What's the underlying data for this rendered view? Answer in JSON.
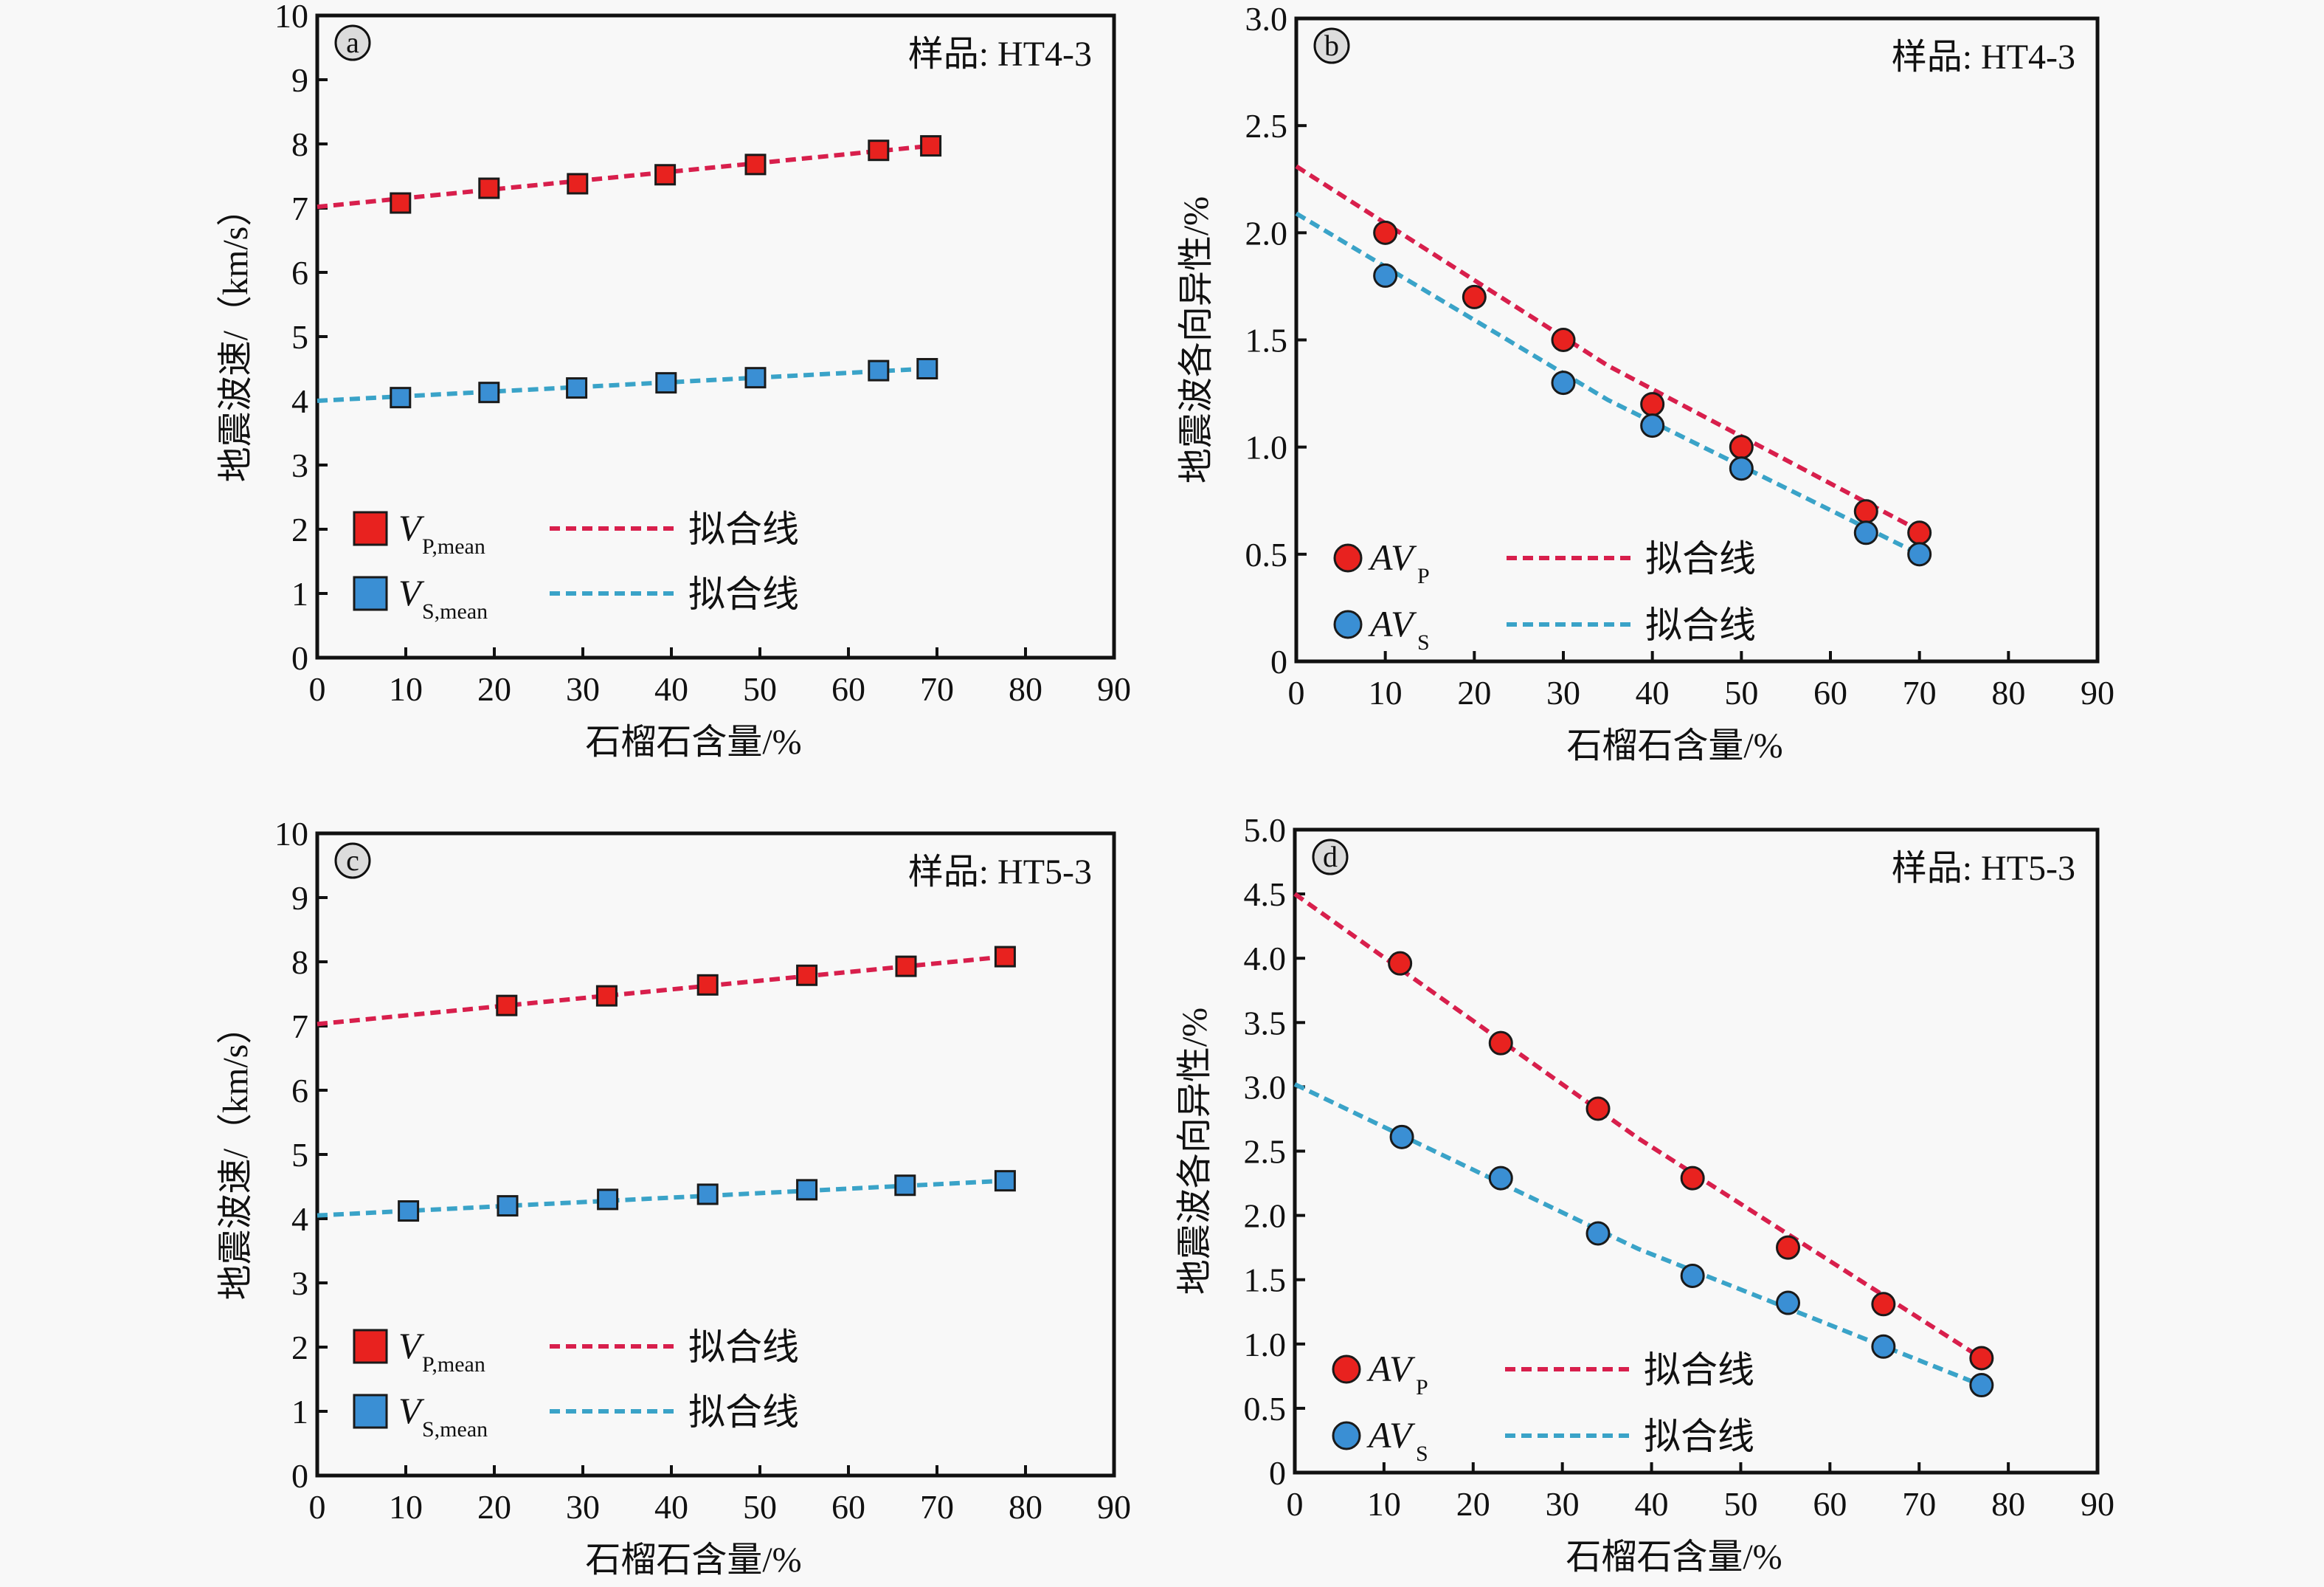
{
  "figure": {
    "background": "#f8f8f8",
    "colors": {
      "p_marker": "#e8221f",
      "p_line": "#d81f4c",
      "s_marker": "#3a8fd4",
      "s_line": "#3aa3c8",
      "axis": "#111111"
    }
  },
  "chart_data": [
    {
      "panel": "a",
      "type": "scatter",
      "marker": "square",
      "sample_label": "样品: HT4-3",
      "xlabel": "石榴石含量/%",
      "ylabel": "地震波速/（km/s）",
      "xlim": [
        0,
        90
      ],
      "ylim": [
        0,
        10
      ],
      "xticks": [
        0,
        10,
        20,
        30,
        40,
        50,
        60,
        70,
        80,
        90
      ],
      "yticks": [
        0,
        1,
        2,
        3,
        4,
        5,
        6,
        7,
        8,
        9,
        10
      ],
      "ytick_labels": [
        "0",
        "1",
        "2",
        "3",
        "4",
        "5",
        "6",
        "7",
        "8",
        "9",
        "10"
      ],
      "grid": false,
      "legend_position": "bottom-left",
      "series": [
        {
          "name": "V",
          "subscript": "P,mean",
          "color_key": "p",
          "x": [
            9.4,
            19.4,
            29.4,
            39.3,
            49.5,
            63.4,
            69.3
          ],
          "y": [
            7.08,
            7.31,
            7.38,
            7.52,
            7.68,
            7.9,
            7.97
          ],
          "fit": {
            "label": "拟合线",
            "x": [
              0,
              69.3
            ],
            "y": [
              7.02,
              7.97
            ]
          }
        },
        {
          "name": "V",
          "subscript": "S,mean",
          "color_key": "s",
          "x": [
            9.4,
            19.4,
            29.3,
            39.4,
            49.5,
            63.4,
            68.9
          ],
          "y": [
            4.05,
            4.13,
            4.2,
            4.28,
            4.36,
            4.47,
            4.5
          ],
          "fit": {
            "label": "拟合线",
            "x": [
              0,
              68.9
            ],
            "y": [
              4.0,
              4.5
            ]
          }
        }
      ]
    },
    {
      "panel": "b",
      "type": "scatter",
      "marker": "circle",
      "sample_label": "样品: HT4-3",
      "xlabel": "石榴石含量/%",
      "ylabel": "地震波各向异性/%",
      "xlim": [
        0,
        90
      ],
      "ylim": [
        0,
        3.0
      ],
      "xticks": [
        0,
        10,
        20,
        30,
        40,
        50,
        60,
        70,
        80,
        90
      ],
      "yticks": [
        0,
        0.5,
        1.0,
        1.5,
        2.0,
        2.5,
        3.0
      ],
      "ytick_labels": [
        "0",
        "0.5",
        "1.0",
        "1.5",
        "2.0",
        "2.5",
        "3.0"
      ],
      "grid": false,
      "legend_position": "bottom-left",
      "series": [
        {
          "name": "AV",
          "subscript": "P",
          "color_key": "p",
          "x": [
            10,
            20,
            30,
            40,
            50,
            64,
            70
          ],
          "y": [
            2.0,
            1.7,
            1.5,
            1.2,
            1.0,
            0.7,
            0.6
          ],
          "fit": {
            "label": "拟合线",
            "x": [
              0,
              35,
              70
            ],
            "y": [
              2.31,
              1.38,
              0.61
            ]
          }
        },
        {
          "name": "AV",
          "subscript": "S",
          "color_key": "s",
          "x": [
            10,
            30,
            40,
            50,
            64,
            70
          ],
          "y": [
            1.8,
            1.3,
            1.1,
            0.9,
            0.6,
            0.5
          ],
          "fit": {
            "label": "拟合线",
            "x": [
              0,
              35,
              70
            ],
            "y": [
              2.09,
              1.22,
              0.5
            ]
          }
        }
      ]
    },
    {
      "panel": "c",
      "type": "scatter",
      "marker": "square",
      "sample_label": "样品: HT5-3",
      "xlabel": "石榴石含量/%",
      "ylabel": "地震波速/（km/s）",
      "xlim": [
        0,
        90
      ],
      "ylim": [
        0,
        10
      ],
      "xticks": [
        0,
        10,
        20,
        30,
        40,
        50,
        60,
        70,
        80,
        90
      ],
      "yticks": [
        0,
        1,
        2,
        3,
        4,
        5,
        6,
        7,
        8,
        9,
        10
      ],
      "ytick_labels": [
        "0",
        "1",
        "2",
        "3",
        "4",
        "5",
        "6",
        "7",
        "8",
        "9",
        "10"
      ],
      "grid": false,
      "legend_position": "bottom-left",
      "series": [
        {
          "name": "V",
          "subscript": "P,mean",
          "color_key": "p",
          "x": [
            21.4,
            32.7,
            44.1,
            55.3,
            66.5,
            77.7
          ],
          "y": [
            7.32,
            7.47,
            7.64,
            7.79,
            7.93,
            8.08
          ],
          "fit": {
            "label": "拟合线",
            "x": [
              0,
              77.7
            ],
            "y": [
              7.03,
              8.08
            ]
          }
        },
        {
          "name": "V",
          "subscript": "S,mean",
          "color_key": "s",
          "x": [
            10.3,
            21.5,
            32.8,
            44.1,
            55.3,
            66.4,
            77.7
          ],
          "y": [
            4.12,
            4.2,
            4.3,
            4.38,
            4.45,
            4.52,
            4.59
          ],
          "fit": {
            "label": "拟合线",
            "x": [
              0,
              77.7
            ],
            "y": [
              4.05,
              4.59
            ]
          }
        }
      ]
    },
    {
      "panel": "d",
      "type": "scatter",
      "marker": "circle",
      "sample_label": "样品: HT5-3",
      "xlabel": "石榴石含量/%",
      "ylabel": "地震波各向异性/%",
      "xlim": [
        0,
        90
      ],
      "ylim": [
        0,
        5.0
      ],
      "xticks": [
        0,
        10,
        20,
        30,
        40,
        50,
        60,
        70,
        80,
        90
      ],
      "yticks": [
        0,
        0.5,
        1.0,
        1.5,
        2.0,
        2.5,
        3.0,
        3.5,
        4.0,
        4.5,
        5.0
      ],
      "ytick_labels": [
        "0",
        "0.5",
        "1.0",
        "1.5",
        "2.0",
        "2.5",
        "3.0",
        "3.5",
        "4.0",
        "4.5",
        "5.0"
      ],
      "grid": false,
      "legend_position": "bottom-left",
      "series": [
        {
          "name": "AV",
          "subscript": "P",
          "color_key": "p",
          "x": [
            11.8,
            23.1,
            34.0,
            44.6,
            55.3,
            66.0,
            77.0
          ],
          "y": [
            3.96,
            3.34,
            2.83,
            2.29,
            1.75,
            1.31,
            0.89
          ],
          "fit": {
            "label": "拟合线",
            "x": [
              0,
              38.5,
              77
            ],
            "y": [
              4.5,
              2.6,
              0.89
            ]
          }
        },
        {
          "name": "AV",
          "subscript": "S",
          "color_key": "s",
          "x": [
            12.0,
            23.1,
            34.0,
            44.6,
            55.3,
            66.0,
            77.0
          ],
          "y": [
            2.61,
            2.29,
            1.86,
            1.53,
            1.32,
            0.98,
            0.68
          ],
          "fit": {
            "label": "拟合线",
            "x": [
              0,
              38.5,
              77
            ],
            "y": [
              3.02,
              1.74,
              0.68
            ]
          }
        }
      ]
    }
  ]
}
